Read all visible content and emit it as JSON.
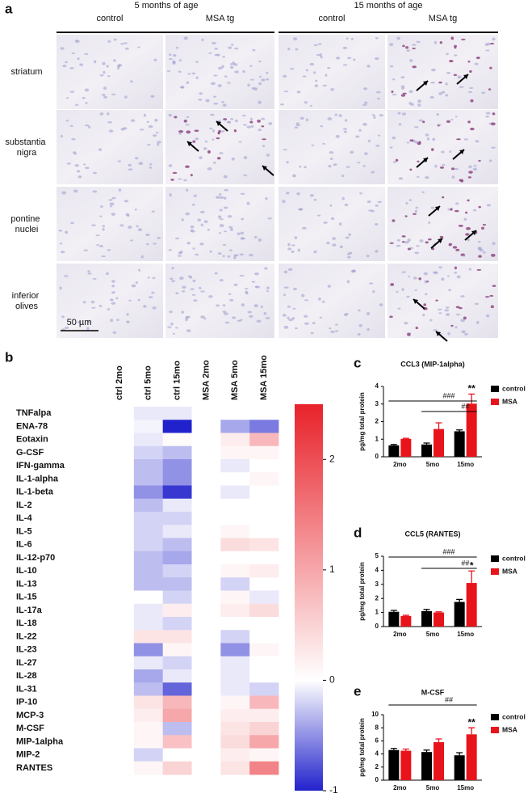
{
  "panel_a": {
    "letter": "a",
    "groups": [
      "5 months of age",
      "15 months of age"
    ],
    "columns": [
      "control",
      "MSA tg",
      "control",
      "MSA tg"
    ],
    "rows": [
      "striatum",
      "substantia nigra",
      "pontine nuclei",
      "inferior olives"
    ],
    "scale_bar": "50 µm"
  },
  "chart_data": [
    {
      "type": "heatmap",
      "panel": "b",
      "columns": [
        "ctrl 2mo",
        "ctrl 5mo",
        "ctrl 15mo",
        "MSA 2mo",
        "MSA 5mo",
        "MSA 15mo"
      ],
      "rows": [
        "TNFalpa",
        "ENA-78",
        "Eotaxin",
        "G-CSF",
        "IFN-gamma",
        "IL-1-alpha",
        "IL-1-beta",
        "IL-2",
        "IL-4",
        "IL-5",
        "IL-6",
        "IL-12-p70",
        "IL-10",
        "IL-13",
        "IL-15",
        "IL-17a",
        "IL-18",
        "IL-22",
        "IL-23",
        "IL-27",
        "IL-28",
        "IL-31",
        "IP-10",
        "MCP-3",
        "M-CSF",
        "MIP-1alpha",
        "MIP-2",
        "RANTES"
      ],
      "values": [
        [
          0,
          -0.1,
          -0.1,
          0,
          0,
          0
        ],
        [
          0,
          -0.05,
          -1,
          0,
          -0.4,
          -0.6
        ],
        [
          0,
          -0.1,
          0.05,
          0,
          0.2,
          0.8
        ],
        [
          0,
          -0.2,
          -0.3,
          0,
          0.1,
          0.1
        ],
        [
          0,
          -0.3,
          -0.5,
          0,
          -0.1,
          0
        ],
        [
          0,
          -0.3,
          -0.5,
          0,
          0,
          0.1
        ],
        [
          0,
          -0.5,
          -0.9,
          0,
          -0.1,
          0
        ],
        [
          0,
          -0.3,
          -0.1,
          0,
          0,
          0
        ],
        [
          0,
          -0.2,
          -0.2,
          0,
          0,
          0
        ],
        [
          0,
          -0.2,
          -0.1,
          0,
          0.1,
          0
        ],
        [
          0,
          -0.2,
          -0.3,
          0,
          0.4,
          0.3
        ],
        [
          0,
          -0.3,
          -0.4,
          0,
          0,
          0
        ],
        [
          0,
          -0.3,
          -0.2,
          0,
          0.1,
          0.2
        ],
        [
          0,
          -0.3,
          -0.3,
          0,
          -0.2,
          0
        ],
        [
          0,
          0,
          -0.2,
          0,
          0.1,
          -0.1
        ],
        [
          0,
          -0.1,
          0.2,
          0,
          0.2,
          0.4
        ],
        [
          0,
          -0.1,
          -0.2,
          0,
          0,
          0
        ],
        [
          0,
          0.3,
          0.3,
          0,
          -0.2,
          0
        ],
        [
          0,
          -0.5,
          0.1,
          0,
          -0.5,
          0.1
        ],
        [
          0,
          -0.1,
          -0.2,
          0,
          -0.1,
          0
        ],
        [
          0,
          -0.4,
          -0.1,
          0,
          -0.1,
          0
        ],
        [
          0,
          -0.3,
          -0.7,
          0,
          -0.1,
          -0.2
        ],
        [
          0,
          0.3,
          0.8,
          0,
          0.1,
          0.8
        ],
        [
          0,
          0.2,
          1.0,
          0,
          0.2,
          0.2
        ],
        [
          0,
          0.1,
          -0.3,
          0,
          0.3,
          0.5
        ],
        [
          0,
          0.1,
          0.7,
          0,
          0.4,
          1.0
        ],
        [
          0,
          -0.2,
          0,
          0,
          0.2,
          0.1
        ],
        [
          0,
          0.1,
          0.5,
          0,
          0.3,
          1.4
        ]
      ],
      "clim": [
        -1,
        2.5
      ],
      "cticks": [
        -1,
        0,
        1,
        2
      ],
      "colors": [
        "#2222cc",
        "#ffffff",
        "#e8222a"
      ]
    },
    {
      "type": "bar",
      "panel": "c",
      "title": "CCL3 (MIP-1alpha)",
      "ylabel": "pg/mg total protein",
      "categories": [
        "2mo",
        "5mo",
        "15mo"
      ],
      "ylim": [
        0,
        4
      ],
      "yticks": [
        0,
        1,
        2,
        3,
        4
      ],
      "series": [
        {
          "name": "control",
          "color": "#000000",
          "values": [
            0.65,
            0.7,
            1.45
          ],
          "errors": [
            0.05,
            0.08,
            0.08
          ]
        },
        {
          "name": "MSA",
          "color": "#e8141c",
          "values": [
            1.02,
            1.58,
            3.02
          ],
          "errors": [
            0.03,
            0.35,
            0.55
          ]
        }
      ],
      "brackets": [
        {
          "text": "###",
          "from": 0,
          "to": 2
        },
        {
          "text": "##",
          "from": 1,
          "to": 2
        }
      ],
      "stars": [
        {
          "text": "**",
          "category": 2,
          "series": 1
        }
      ]
    },
    {
      "type": "bar",
      "panel": "d",
      "title": "CCL5 (RANTES)",
      "ylabel": "pg/mg total protein",
      "categories": [
        "2mo",
        "5mo",
        "15mo"
      ],
      "ylim": [
        0,
        5
      ],
      "yticks": [
        0,
        1,
        2,
        3,
        4,
        5
      ],
      "series": [
        {
          "name": "control",
          "color": "#000000",
          "values": [
            1.05,
            1.1,
            1.75
          ],
          "errors": [
            0.1,
            0.12,
            0.18
          ]
        },
        {
          "name": "MSA",
          "color": "#e8141c",
          "values": [
            0.75,
            1.0,
            3.1
          ],
          "errors": [
            0.05,
            0.05,
            0.85
          ]
        }
      ],
      "brackets": [
        {
          "text": "###",
          "from": 0,
          "to": 2
        },
        {
          "text": "##",
          "from": 1,
          "to": 2
        }
      ],
      "stars": [
        {
          "text": "*",
          "category": 2,
          "series": 1
        }
      ]
    },
    {
      "type": "bar",
      "panel": "e",
      "title": "M-CSF",
      "ylabel": "pg/mg total protein",
      "categories": [
        "2mo",
        "5mo",
        "15mo"
      ],
      "ylim": [
        0,
        10
      ],
      "yticks": [
        0,
        2,
        4,
        6,
        8,
        10
      ],
      "series": [
        {
          "name": "control",
          "color": "#000000",
          "values": [
            4.6,
            4.3,
            3.8
          ],
          "errors": [
            0.25,
            0.3,
            0.4
          ]
        },
        {
          "name": "MSA",
          "color": "#e8141c",
          "values": [
            4.5,
            5.8,
            7.0
          ],
          "errors": [
            0.25,
            0.5,
            1.0
          ]
        }
      ],
      "brackets": [
        {
          "text": "##",
          "from": 0,
          "to": 2
        }
      ],
      "stars": [
        {
          "text": "**",
          "category": 2,
          "series": 1
        }
      ]
    }
  ]
}
